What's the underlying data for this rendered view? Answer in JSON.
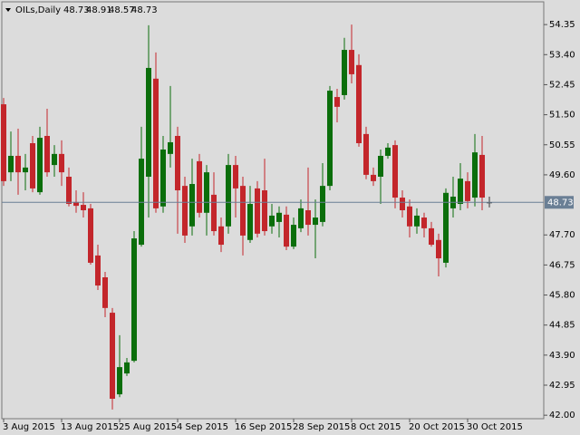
{
  "chart_data": {
    "type": "candlestick",
    "symbol": "OILs,Daily",
    "categories": [
      "3 Aug 2015",
      null,
      null,
      null,
      null,
      null,
      null,
      null,
      "13 Aug 2015",
      null,
      null,
      null,
      null,
      null,
      null,
      null,
      "25 Aug 2015",
      null,
      null,
      null,
      null,
      null,
      null,
      null,
      "4 Sep 2015",
      null,
      null,
      null,
      null,
      null,
      null,
      null,
      "16 Sep 2015",
      null,
      null,
      null,
      null,
      null,
      null,
      null,
      "28 Sep 2015",
      null,
      null,
      null,
      null,
      null,
      null,
      null,
      "8 Oct 2015",
      null,
      null,
      null,
      null,
      null,
      null,
      null,
      "20 Oct 2015",
      null,
      null,
      null,
      null,
      null,
      null,
      null,
      "30 Oct 2015",
      null,
      null,
      null
    ],
    "open": [
      51.83,
      49.68,
      50.2,
      49.68,
      50.6,
      49.05,
      50.83,
      49.91,
      50.26,
      49.54,
      48.74,
      48.65,
      48.54,
      47.05,
      46.36,
      45.24,
      42.66,
      43.32,
      43.72,
      47.39,
      49.54,
      52.64,
      48.6,
      50.26,
      50.83,
      49.25,
      47.97,
      50.03,
      48.4,
      48.97,
      47.97,
      47.97,
      49.91,
      49.25,
      47.54,
      49.17,
      49.11,
      47.97,
      48.11,
      48.34,
      47.33,
      47.91,
      48.48,
      48.02,
      48.11,
      49.25,
      52.06,
      52.12,
      53.55,
      53.07,
      50.89,
      49.6,
      49.54,
      50.2,
      50.54,
      48.88,
      48.6,
      47.97,
      48.25,
      47.91,
      47.54,
      46.82,
      48.54,
      48.68,
      49.4,
      48.88,
      50.23,
      48.73
    ],
    "high": [
      52.03,
      50.97,
      51.06,
      50.26,
      50.83,
      51.12,
      51.69,
      50.54,
      50.69,
      49.83,
      49.11,
      49.05,
      48.68,
      47.39,
      46.53,
      45.39,
      44.53,
      43.81,
      47.82,
      51.12,
      54.33,
      53.47,
      50.83,
      52.41,
      51.12,
      49.54,
      50.11,
      50.26,
      49.91,
      49.68,
      48.25,
      50.26,
      50.2,
      49.54,
      49.25,
      49.4,
      50.11,
      48.68,
      48.6,
      48.6,
      48.25,
      48.82,
      49.83,
      48.82,
      49.97,
      52.41,
      52.32,
      53.93,
      54.35,
      53.41,
      51.12,
      49.83,
      50.4,
      50.6,
      50.69,
      49.11,
      48.82,
      48.54,
      48.4,
      48.11,
      47.74,
      49.17,
      49.54,
      49.97,
      49.68,
      50.89,
      50.83,
      48.91
    ],
    "low": [
      49.25,
      49.4,
      48.97,
      49.11,
      49.05,
      48.97,
      49.54,
      49.54,
      49.25,
      48.6,
      48.4,
      48.25,
      46.76,
      45.96,
      45.1,
      42.18,
      42.57,
      43.24,
      43.67,
      47.33,
      48.25,
      48.4,
      48.4,
      49.83,
      47.74,
      47.45,
      47.68,
      48.25,
      47.68,
      47.68,
      47.16,
      47.74,
      48.25,
      47.05,
      47.45,
      47.62,
      47.68,
      47.74,
      47.62,
      47.22,
      47.25,
      47.79,
      47.68,
      46.96,
      47.97,
      49.11,
      51.26,
      51.98,
      52.49,
      50.49,
      49.46,
      49.25,
      48.68,
      50.11,
      48.54,
      48.25,
      47.62,
      47.74,
      47.62,
      47.33,
      46.39,
      46.67,
      48.25,
      48.48,
      48.54,
      48.6,
      48.48,
      48.57
    ],
    "close": [
      49.4,
      50.2,
      49.68,
      49.83,
      49.17,
      50.77,
      49.68,
      50.26,
      49.68,
      48.68,
      48.62,
      48.48,
      46.82,
      46.1,
      45.39,
      42.52,
      43.52,
      43.67,
      47.59,
      50.11,
      52.98,
      48.54,
      50.4,
      50.63,
      49.11,
      47.68,
      49.31,
      48.4,
      49.68,
      47.82,
      47.39,
      49.91,
      49.17,
      47.68,
      48.68,
      47.74,
      47.82,
      48.31,
      48.4,
      47.33,
      48.02,
      48.54,
      48.02,
      48.25,
      49.25,
      52.26,
      51.75,
      53.55,
      52.78,
      50.6,
      49.6,
      49.4,
      50.2,
      50.46,
      48.88,
      48.48,
      47.97,
      48.31,
      47.91,
      47.39,
      46.96,
      49.03,
      48.91,
      49.48,
      48.77,
      50.31,
      48.88,
      48.73
    ],
    "up_color": "#0b6e0b",
    "down_color": "#c3262b",
    "ylim": [
      41.89,
      55.07
    ],
    "yticks": [
      54.35,
      {
        "value": 53.4,
        "label": "53.40"
      },
      52.45,
      {
        "value": 51.5,
        "label": "51.50"
      },
      50.55,
      {
        "value": 49.6,
        "label": "49.60"
      },
      {
        "value": 47.7,
        "label": "47.70"
      },
      46.75,
      {
        "value": 45.8,
        "label": "45.80"
      },
      44.85,
      {
        "value": 43.9,
        "label": "43.90"
      },
      42.95,
      {
        "value": 42,
        "label": "42.00"
      }
    ]
  }
}
